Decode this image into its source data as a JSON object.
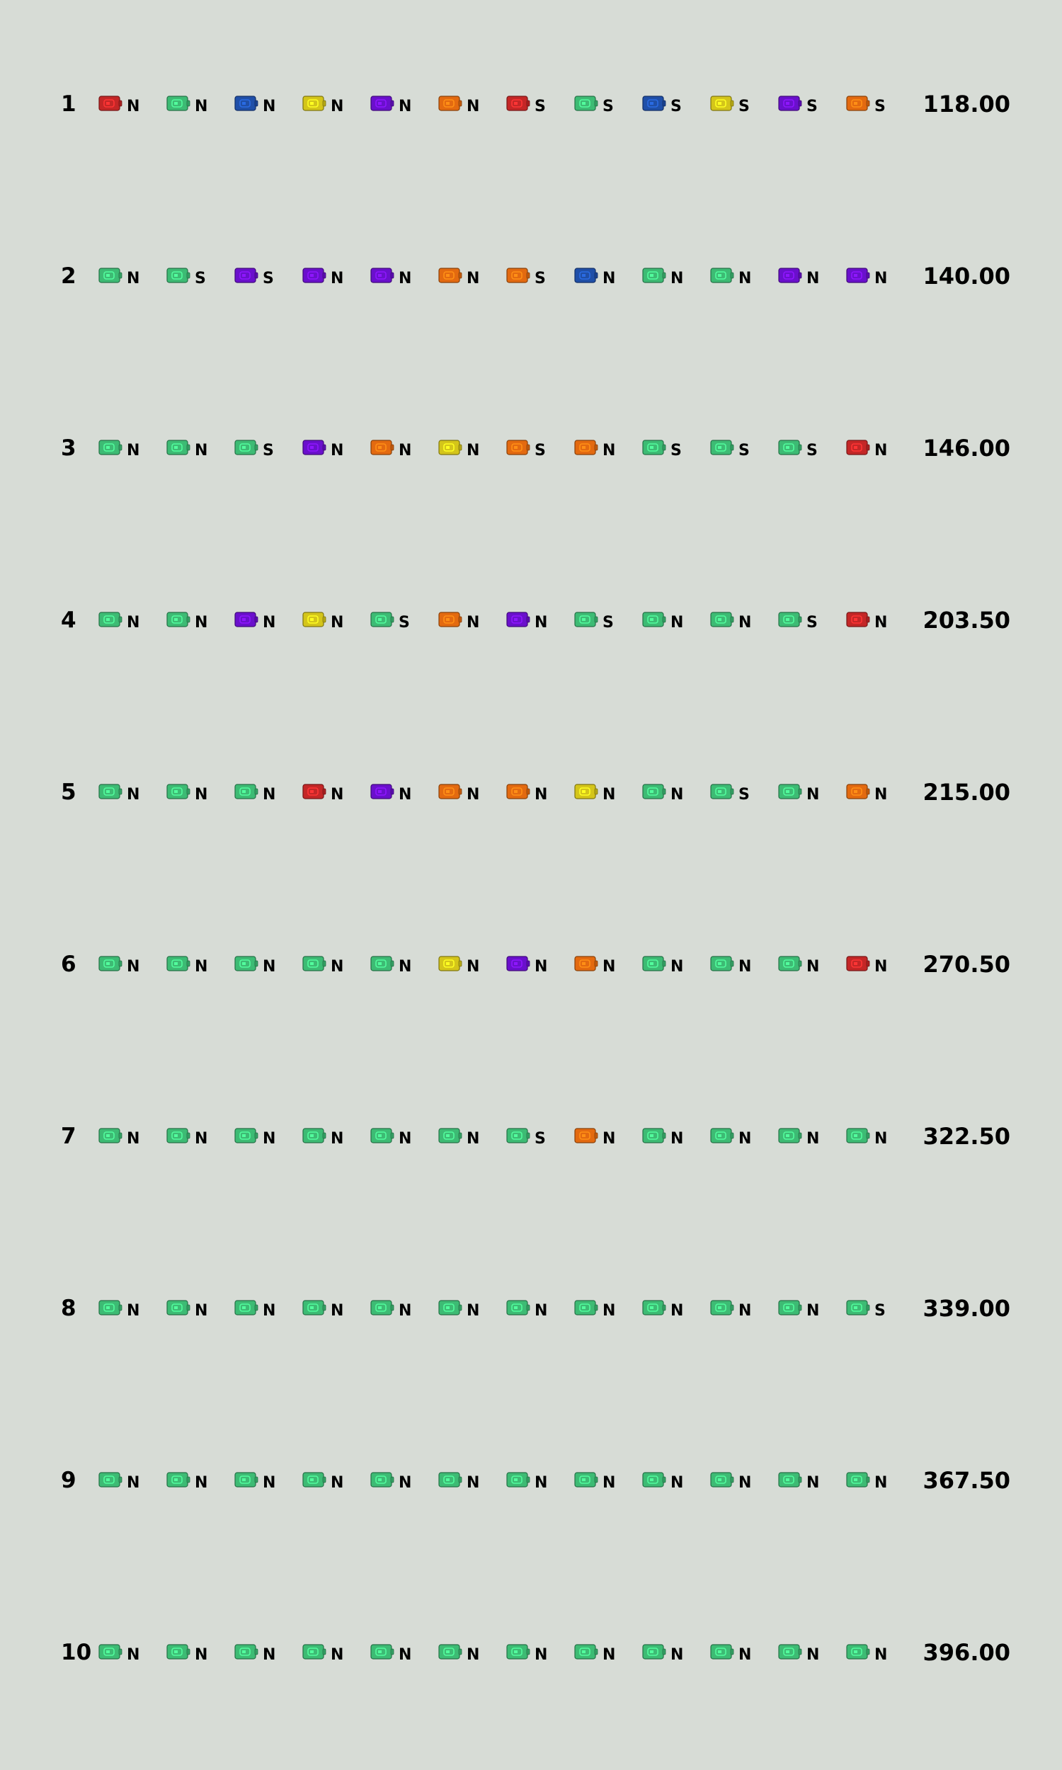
{
  "colors": {
    "background": "#d7dcd6",
    "green": "#3dbb74",
    "red": "#c42727",
    "blue": "#1f4fa8",
    "yellow": "#d4c51a",
    "purple": "#6a10cc",
    "orange": "#e36a10"
  },
  "rows": [
    {
      "number": "1",
      "score": "118.00",
      "cells": [
        {
          "icon": "red-card-icon",
          "color": "red",
          "letter": "N"
        },
        {
          "icon": "green-card-icon",
          "color": "green",
          "letter": "N"
        },
        {
          "icon": "blue-card-icon",
          "color": "blue",
          "letter": "N"
        },
        {
          "icon": "yellow-card-icon",
          "color": "yellow",
          "letter": "N"
        },
        {
          "icon": "purple-card-icon",
          "color": "purple",
          "letter": "N"
        },
        {
          "icon": "orange-card-icon",
          "color": "orange",
          "letter": "N"
        },
        {
          "icon": "red-card-icon",
          "color": "red",
          "letter": "S"
        },
        {
          "icon": "green-card-icon",
          "color": "green",
          "letter": "S"
        },
        {
          "icon": "blue-card-icon",
          "color": "blue",
          "letter": "S"
        },
        {
          "icon": "yellow-card-icon",
          "color": "yellow",
          "letter": "S"
        },
        {
          "icon": "purple-card-icon",
          "color": "purple",
          "letter": "S"
        },
        {
          "icon": "orange-card-icon",
          "color": "orange",
          "letter": "S"
        }
      ]
    },
    {
      "number": "2",
      "score": "140.00",
      "cells": [
        {
          "icon": "green-card-icon",
          "color": "green",
          "letter": "N"
        },
        {
          "icon": "green-card-icon",
          "color": "green",
          "letter": "S"
        },
        {
          "icon": "purple-card-icon",
          "color": "purple",
          "letter": "S"
        },
        {
          "icon": "purple-card-icon",
          "color": "purple",
          "letter": "N"
        },
        {
          "icon": "purple-card-icon",
          "color": "purple",
          "letter": "N"
        },
        {
          "icon": "orange-card-icon",
          "color": "orange",
          "letter": "N"
        },
        {
          "icon": "orange-card-icon",
          "color": "orange",
          "letter": "S"
        },
        {
          "icon": "blue-card-icon",
          "color": "blue",
          "letter": "N"
        },
        {
          "icon": "green-card-icon",
          "color": "green",
          "letter": "N"
        },
        {
          "icon": "green-card-icon",
          "color": "green",
          "letter": "N"
        },
        {
          "icon": "purple-card-icon",
          "color": "purple",
          "letter": "N"
        },
        {
          "icon": "purple-card-icon",
          "color": "purple",
          "letter": "N"
        }
      ]
    },
    {
      "number": "3",
      "score": "146.00",
      "cells": [
        {
          "icon": "green-card-icon",
          "color": "green",
          "letter": "N"
        },
        {
          "icon": "green-card-icon",
          "color": "green",
          "letter": "N"
        },
        {
          "icon": "green-card-icon",
          "color": "green",
          "letter": "S"
        },
        {
          "icon": "purple-card-icon",
          "color": "purple",
          "letter": "N"
        },
        {
          "icon": "orange-card-icon",
          "color": "orange",
          "letter": "N"
        },
        {
          "icon": "yellow-card-icon",
          "color": "yellow",
          "letter": "N"
        },
        {
          "icon": "orange-card-icon",
          "color": "orange",
          "letter": "S"
        },
        {
          "icon": "orange-card-icon",
          "color": "orange",
          "letter": "N"
        },
        {
          "icon": "green-card-icon",
          "color": "green",
          "letter": "S"
        },
        {
          "icon": "green-card-icon",
          "color": "green",
          "letter": "S"
        },
        {
          "icon": "green-card-icon",
          "color": "green",
          "letter": "S"
        },
        {
          "icon": "red-card-icon",
          "color": "red",
          "letter": "N"
        }
      ]
    },
    {
      "number": "4",
      "score": "203.50",
      "cells": [
        {
          "icon": "green-card-icon",
          "color": "green",
          "letter": "N"
        },
        {
          "icon": "green-card-icon",
          "color": "green",
          "letter": "N"
        },
        {
          "icon": "purple-card-icon",
          "color": "purple",
          "letter": "N"
        },
        {
          "icon": "yellow-card-icon",
          "color": "yellow",
          "letter": "N"
        },
        {
          "icon": "green-card-icon",
          "color": "green",
          "letter": "S"
        },
        {
          "icon": "orange-card-icon",
          "color": "orange",
          "letter": "N"
        },
        {
          "icon": "purple-card-icon",
          "color": "purple",
          "letter": "N"
        },
        {
          "icon": "green-card-icon",
          "color": "green",
          "letter": "S"
        },
        {
          "icon": "green-card-icon",
          "color": "green",
          "letter": "N"
        },
        {
          "icon": "green-card-icon",
          "color": "green",
          "letter": "N"
        },
        {
          "icon": "green-card-icon",
          "color": "green",
          "letter": "S"
        },
        {
          "icon": "red-card-icon",
          "color": "red",
          "letter": "N"
        }
      ]
    },
    {
      "number": "5",
      "score": "215.00",
      "cells": [
        {
          "icon": "green-card-icon",
          "color": "green",
          "letter": "N"
        },
        {
          "icon": "green-card-icon",
          "color": "green",
          "letter": "N"
        },
        {
          "icon": "green-card-icon",
          "color": "green",
          "letter": "N"
        },
        {
          "icon": "red-card-icon",
          "color": "red",
          "letter": "N"
        },
        {
          "icon": "purple-card-icon",
          "color": "purple",
          "letter": "N"
        },
        {
          "icon": "orange-card-icon",
          "color": "orange",
          "letter": "N"
        },
        {
          "icon": "orange-card-icon",
          "color": "orange",
          "letter": "N"
        },
        {
          "icon": "yellow-card-icon",
          "color": "yellow",
          "letter": "N"
        },
        {
          "icon": "green-card-icon",
          "color": "green",
          "letter": "N"
        },
        {
          "icon": "green-card-icon",
          "color": "green",
          "letter": "S"
        },
        {
          "icon": "green-card-icon",
          "color": "green",
          "letter": "N"
        },
        {
          "icon": "orange-card-icon",
          "color": "orange",
          "letter": "N"
        }
      ]
    },
    {
      "number": "6",
      "score": "270.50",
      "cells": [
        {
          "icon": "green-card-icon",
          "color": "green",
          "letter": "N"
        },
        {
          "icon": "green-card-icon",
          "color": "green",
          "letter": "N"
        },
        {
          "icon": "green-card-icon",
          "color": "green",
          "letter": "N"
        },
        {
          "icon": "green-card-icon",
          "color": "green",
          "letter": "N"
        },
        {
          "icon": "green-card-icon",
          "color": "green",
          "letter": "N"
        },
        {
          "icon": "yellow-card-icon",
          "color": "yellow",
          "letter": "N"
        },
        {
          "icon": "purple-card-icon",
          "color": "purple",
          "letter": "N"
        },
        {
          "icon": "orange-card-icon",
          "color": "orange",
          "letter": "N"
        },
        {
          "icon": "green-card-icon",
          "color": "green",
          "letter": "N"
        },
        {
          "icon": "green-card-icon",
          "color": "green",
          "letter": "N"
        },
        {
          "icon": "green-card-icon",
          "color": "green",
          "letter": "N"
        },
        {
          "icon": "red-card-icon",
          "color": "red",
          "letter": "N"
        }
      ]
    },
    {
      "number": "7",
      "score": "322.50",
      "cells": [
        {
          "icon": "green-card-icon",
          "color": "green",
          "letter": "N"
        },
        {
          "icon": "green-card-icon",
          "color": "green",
          "letter": "N"
        },
        {
          "icon": "green-card-icon",
          "color": "green",
          "letter": "N"
        },
        {
          "icon": "green-card-icon",
          "color": "green",
          "letter": "N"
        },
        {
          "icon": "green-card-icon",
          "color": "green",
          "letter": "N"
        },
        {
          "icon": "green-card-icon",
          "color": "green",
          "letter": "N"
        },
        {
          "icon": "green-card-icon",
          "color": "green",
          "letter": "S"
        },
        {
          "icon": "orange-card-icon",
          "color": "orange",
          "letter": "N"
        },
        {
          "icon": "green-card-icon",
          "color": "green",
          "letter": "N"
        },
        {
          "icon": "green-card-icon",
          "color": "green",
          "letter": "N"
        },
        {
          "icon": "green-card-icon",
          "color": "green",
          "letter": "N"
        },
        {
          "icon": "green-card-icon",
          "color": "green",
          "letter": "N"
        }
      ]
    },
    {
      "number": "8",
      "score": "339.00",
      "cells": [
        {
          "icon": "green-card-icon",
          "color": "green",
          "letter": "N"
        },
        {
          "icon": "green-card-icon",
          "color": "green",
          "letter": "N"
        },
        {
          "icon": "green-card-icon",
          "color": "green",
          "letter": "N"
        },
        {
          "icon": "green-card-icon",
          "color": "green",
          "letter": "N"
        },
        {
          "icon": "green-card-icon",
          "color": "green",
          "letter": "N"
        },
        {
          "icon": "green-card-icon",
          "color": "green",
          "letter": "N"
        },
        {
          "icon": "green-card-icon",
          "color": "green",
          "letter": "N"
        },
        {
          "icon": "green-card-icon",
          "color": "green",
          "letter": "N"
        },
        {
          "icon": "green-card-icon",
          "color": "green",
          "letter": "N"
        },
        {
          "icon": "green-card-icon",
          "color": "green",
          "letter": "N"
        },
        {
          "icon": "green-card-icon",
          "color": "green",
          "letter": "N"
        },
        {
          "icon": "green-card-icon",
          "color": "green",
          "letter": "S"
        }
      ]
    },
    {
      "number": "9",
      "score": "367.50",
      "cells": [
        {
          "icon": "green-card-icon",
          "color": "green",
          "letter": "N"
        },
        {
          "icon": "green-card-icon",
          "color": "green",
          "letter": "N"
        },
        {
          "icon": "green-card-icon",
          "color": "green",
          "letter": "N"
        },
        {
          "icon": "green-card-icon",
          "color": "green",
          "letter": "N"
        },
        {
          "icon": "green-card-icon",
          "color": "green",
          "letter": "N"
        },
        {
          "icon": "green-card-icon",
          "color": "green",
          "letter": "N"
        },
        {
          "icon": "green-card-icon",
          "color": "green",
          "letter": "N"
        },
        {
          "icon": "green-card-icon",
          "color": "green",
          "letter": "N"
        },
        {
          "icon": "green-card-icon",
          "color": "green",
          "letter": "N"
        },
        {
          "icon": "green-card-icon",
          "color": "green",
          "letter": "N"
        },
        {
          "icon": "green-card-icon",
          "color": "green",
          "letter": "N"
        },
        {
          "icon": "green-card-icon",
          "color": "green",
          "letter": "N"
        }
      ]
    },
    {
      "number": "10",
      "score": "396.00",
      "cells": [
        {
          "icon": "green-card-icon",
          "color": "green",
          "letter": "N"
        },
        {
          "icon": "green-card-icon",
          "color": "green",
          "letter": "N"
        },
        {
          "icon": "green-card-icon",
          "color": "green",
          "letter": "N"
        },
        {
          "icon": "green-card-icon",
          "color": "green",
          "letter": "N"
        },
        {
          "icon": "green-card-icon",
          "color": "green",
          "letter": "N"
        },
        {
          "icon": "green-card-icon",
          "color": "green",
          "letter": "N"
        },
        {
          "icon": "green-card-icon",
          "color": "green",
          "letter": "N"
        },
        {
          "icon": "green-card-icon",
          "color": "green",
          "letter": "N"
        },
        {
          "icon": "green-card-icon",
          "color": "green",
          "letter": "N"
        },
        {
          "icon": "green-card-icon",
          "color": "green",
          "letter": "N"
        },
        {
          "icon": "green-card-icon",
          "color": "green",
          "letter": "N"
        },
        {
          "icon": "green-card-icon",
          "color": "green",
          "letter": "N"
        }
      ]
    }
  ]
}
